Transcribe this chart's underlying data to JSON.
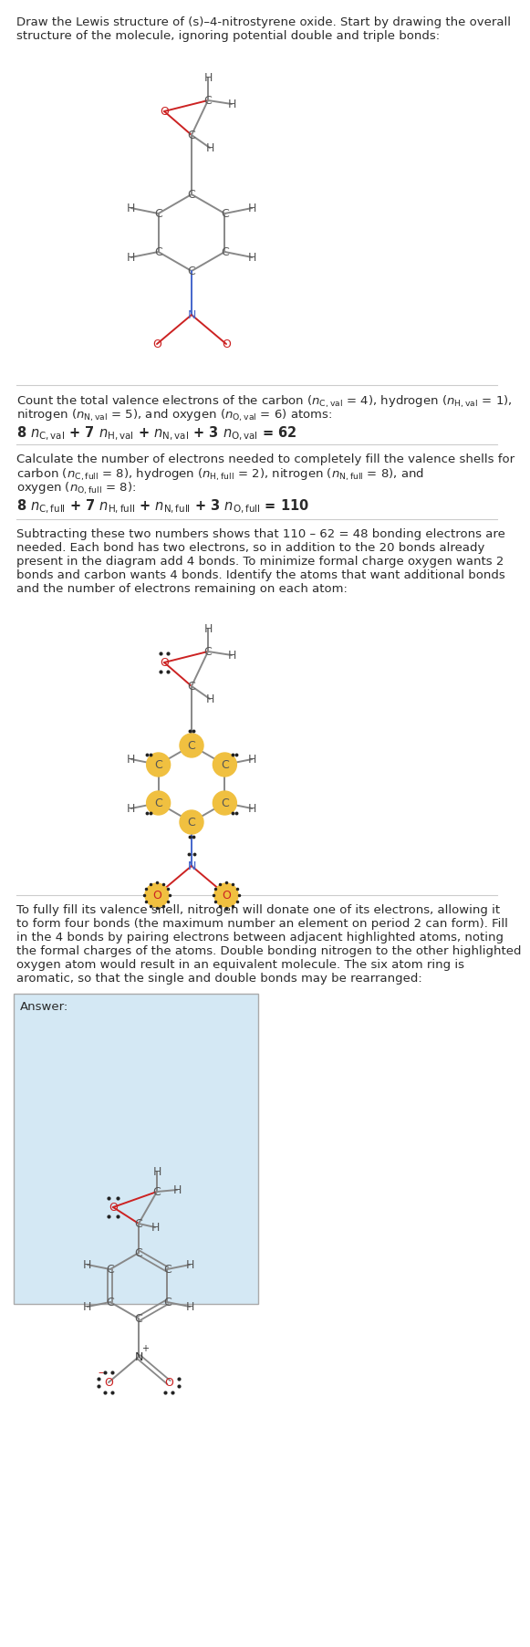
{
  "bg_color": "#ffffff",
  "text_color": "#2a2a2a",
  "bond_gray": "#888888",
  "bond_red": "#cc2222",
  "bond_blue": "#4466cc",
  "color_C": "#555555",
  "color_O": "#cc2222",
  "color_N": "#4466cc",
  "color_H": "#555555",
  "highlight": "#f0c040",
  "answer_bg": "#d4e8f4",
  "sep_color": "#cccccc",
  "title_line1": "Draw the Lewis structure of (s)–4-nitrostyrene oxide. Start by drawing the overall",
  "title_line2": "structure of the molecule, ignoring potential double and triple bonds:",
  "s2_line1": "Count the total valence electrons of the carbon ($n_{\\mathrm{C,val}}$ = 4), hydrogen ($n_{\\mathrm{H,val}}$ = 1),",
  "s2_line2": "nitrogen ($n_{\\mathrm{N,val}}$ = 5), and oxygen ($n_{\\mathrm{O,val}}$ = 6) atoms:",
  "s2_line3": "8 $n_{\\mathrm{C,val}}$ + 7 $n_{\\mathrm{H,val}}$ + $n_{\\mathrm{N,val}}$ + 3 $n_{\\mathrm{O,val}}$ = 62",
  "s3_line1": "Calculate the number of electrons needed to completely fill the valence shells for",
  "s3_line2": "carbon ($n_{\\mathrm{C,full}}$ = 8), hydrogen ($n_{\\mathrm{H,full}}$ = 2), nitrogen ($n_{\\mathrm{N,full}}$ = 8), and",
  "s3_line3": "oxygen ($n_{\\mathrm{O,full}}$ = 8):",
  "s3_line4": "8 $n_{\\mathrm{C,full}}$ + 7 $n_{\\mathrm{H,full}}$ + $n_{\\mathrm{N,full}}$ + 3 $n_{\\mathrm{O,full}}$ = 110",
  "s4_line1": "Subtracting these two numbers shows that 110 – 62 = 48 bonding electrons are",
  "s4_line2": "needed. Each bond has two electrons, so in addition to the 20 bonds already",
  "s4_line3": "present in the diagram add 4 bonds. To minimize formal charge oxygen wants 2",
  "s4_line4": "bonds and carbon wants 4 bonds. Identify the atoms that want additional bonds",
  "s4_line5": "and the number of electrons remaining on each atom:",
  "s5_line1": "To fully fill its valence shell, nitrogen will donate one of its electrons, allowing it",
  "s5_line2": "to form four bonds (the maximum number an element on period 2 can form). Fill",
  "s5_line3": "in the 4 bonds by pairing electrons between adjacent highlighted atoms, noting",
  "s5_line4": "the formal charges of the atoms. Double bonding nitrogen to the other highlighted",
  "s5_line5": "oxygen atom would result in an equivalent molecule. The six atom ring is",
  "s5_line6": "aromatic, so that the single and double bonds may be rearranged:",
  "answer_label": "Answer:"
}
